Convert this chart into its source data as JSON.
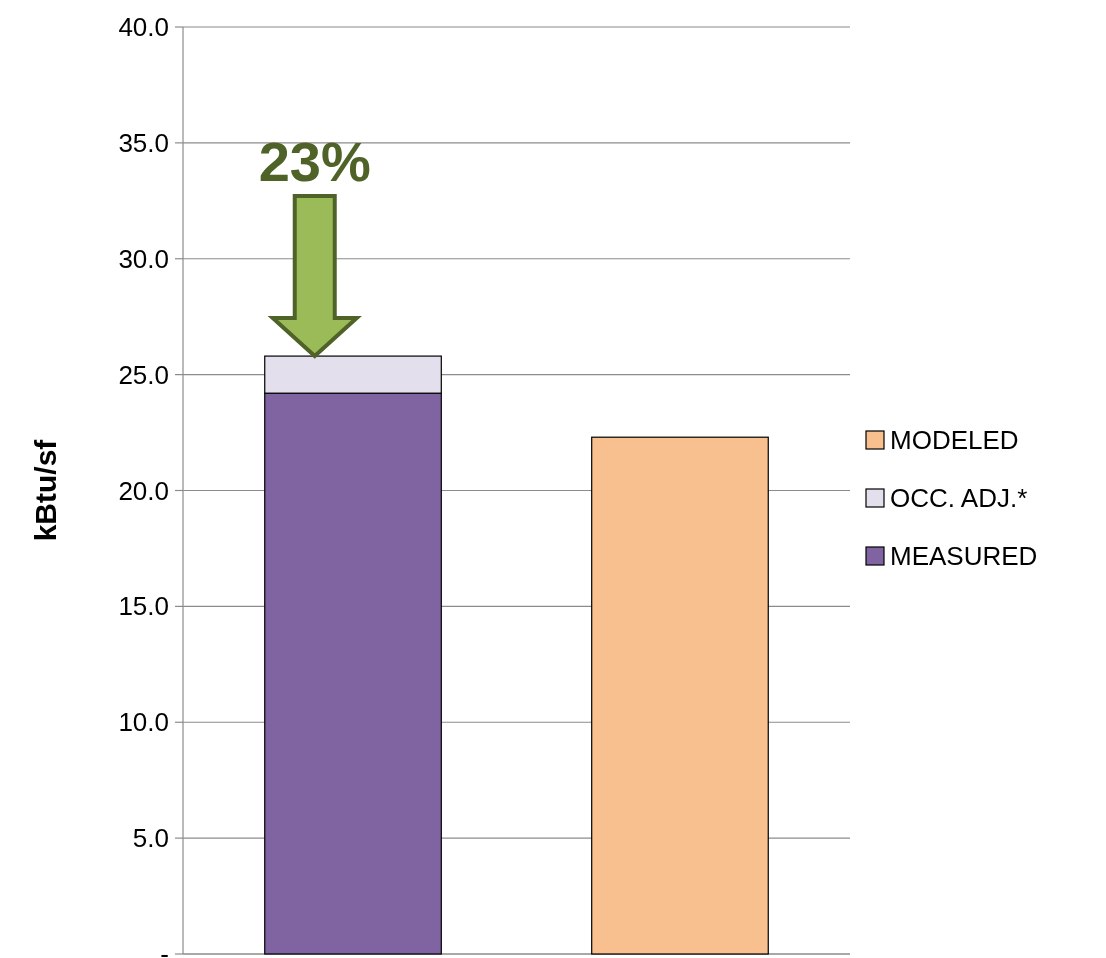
{
  "chart_data": {
    "type": "bar",
    "stacked": true,
    "categories": [
      null,
      null
    ],
    "ylabel": "kBtu/sf",
    "series": [
      {
        "name": "MEASURED",
        "color": "#8064a2",
        "values": [
          24.2,
          null
        ]
      },
      {
        "name": "OCC. ADJ.*",
        "color": "#e4dfec",
        "values": [
          1.6,
          null
        ]
      },
      {
        "name": "MODELED",
        "color": "#f8c08f",
        "values": [
          null,
          22.3
        ]
      }
    ],
    "ylim": [
      0,
      40
    ],
    "yticks": [
      {
        "value": 0,
        "label": "-"
      },
      {
        "value": 5,
        "label": "5.0"
      },
      {
        "value": 10,
        "label": "10.0"
      },
      {
        "value": 15,
        "label": "15.0"
      },
      {
        "value": 20,
        "label": "20.0"
      },
      {
        "value": 25,
        "label": "25.0"
      },
      {
        "value": 30,
        "label": "30.0"
      },
      {
        "value": 35,
        "label": "35.0"
      },
      {
        "value": 40,
        "label": "40.0"
      }
    ],
    "grid": "y",
    "legend": "right",
    "annotations": [
      "23%"
    ]
  }
}
